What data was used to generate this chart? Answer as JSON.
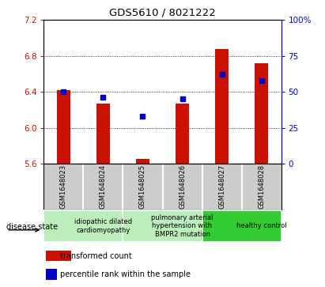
{
  "title": "GDS5610 / 8021222",
  "samples": [
    "GSM1648023",
    "GSM1648024",
    "GSM1648025",
    "GSM1648026",
    "GSM1648027",
    "GSM1648028"
  ],
  "red_values": [
    6.42,
    6.27,
    5.65,
    6.27,
    6.88,
    6.72
  ],
  "blue_values": [
    50,
    46,
    33,
    45,
    62,
    58
  ],
  "ylim_left": [
    5.6,
    7.2
  ],
  "ylim_right": [
    0,
    100
  ],
  "yticks_left": [
    5.6,
    6.0,
    6.4,
    6.8,
    7.2
  ],
  "yticks_right": [
    0,
    25,
    50,
    75,
    100
  ],
  "grid_values": [
    6.0,
    6.4,
    6.8
  ],
  "bar_color": "#cc1100",
  "dot_color": "#0000cc",
  "baseline": 5.6,
  "groups": [
    {
      "label": "idiopathic dilated\ncardiomyopathy",
      "start": 0,
      "end": 2,
      "color": "#bbeebb"
    },
    {
      "label": "pulmonary arterial\nhypertension with\nBMPR2 mutation",
      "start": 2,
      "end": 4,
      "color": "#bbeebb"
    },
    {
      "label": "healthy control",
      "start": 4,
      "end": 6,
      "color": "#33cc33"
    }
  ],
  "legend_red": "transformed count",
  "legend_blue": "percentile rank within the sample",
  "disease_state_label": "disease state",
  "bar_width": 0.35,
  "sample_box_color": "#cccccc",
  "fig_bg": "#ffffff"
}
